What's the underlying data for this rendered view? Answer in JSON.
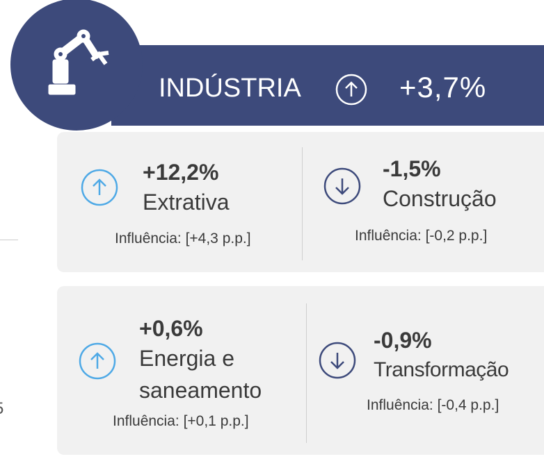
{
  "header": {
    "title": "INDÚSTRIA",
    "change": "+3,7%"
  },
  "sectors": [
    {
      "change": "+12,2%",
      "name": [
        "Extrativa"
      ],
      "influence": "Influência: [+4,3 p.p.]",
      "direction": "up"
    },
    {
      "change": "-1,5%",
      "name": [
        "Construção"
      ],
      "influence": "Influência: [-0,2 p.p.]",
      "direction": "down"
    },
    {
      "change": "+0,6%",
      "name": [
        "Energia e",
        "saneamento"
      ],
      "influence": "Influência: [+0,1 p.p.]",
      "direction": "up"
    },
    {
      "change": "-0,9%",
      "name": [
        "Transformação"
      ],
      "influence": "Influência: [-0,4 p.p.]",
      "direction": "down"
    }
  ],
  "side_fragment": "5"
}
